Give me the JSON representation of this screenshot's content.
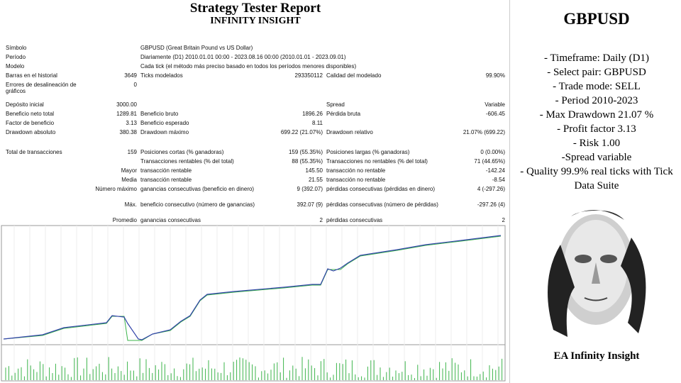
{
  "report": {
    "title": "Strategy Tester Report",
    "subtitle": "INFINITY INSIGHT",
    "rows": [
      [
        "Símbolo",
        null,
        "GBPUSD (Great Britain Pound vs US Dollar)",
        null,
        null,
        null
      ],
      [
        "Período",
        null,
        "Diariamente (D1) 2010.01.01 00:00 - 2023.08.16 00:00 (2010.01.01 - 2023.09.01)",
        null,
        null,
        null
      ],
      [
        "Modelo",
        null,
        "Cada tick (el método más preciso basado en todos los períodos menores disponibles)",
        null,
        null,
        null
      ],
      [
        "Barras en el historial",
        "3649",
        "Ticks modelados",
        "293350112",
        "Calidad del modelado",
        "99.90%"
      ],
      [
        "Errores de desalineación de gráficos",
        "0",
        null,
        null,
        null,
        null
      ],
      [
        "Depósito inicial",
        "3000.00",
        null,
        null,
        "Spread",
        "Variable"
      ],
      [
        "Beneficio neto total",
        "1289.81",
        "Beneficio bruto",
        "1896.26",
        "Pérdida bruta",
        "-606.45"
      ],
      [
        "Factor de beneficio",
        "3.13",
        "Beneficio esperado",
        "8.11",
        null,
        null
      ],
      [
        "Drawdown absoluto",
        "380.38",
        "Drawdown máximo",
        "699.22 (21.07%)",
        "Drawdown relativo",
        "21.07% (699.22)"
      ],
      [
        "Total de transacciones",
        "159",
        "Posiciones cortas (% ganadoras)",
        "159 (55.35%)",
        "Posiciones largas (% ganadoras)",
        "0 (0.00%)"
      ],
      [
        null,
        null,
        "Transacciones rentables (% del total)",
        "88 (55.35%)",
        "Transacciones no rentables (% del total)",
        "71 (44.65%)"
      ],
      [
        null,
        "Mayor",
        "transacción rentable",
        "145.50",
        "transacción no rentable",
        "-142.24"
      ],
      [
        null,
        "Media",
        "transacción rentable",
        "21.55",
        "transacción no rentable",
        "-8.54"
      ],
      [
        null,
        "Número máximo",
        "ganancias consecutivas (beneficio en dinero)",
        "9 (392.07)",
        "pérdidas consecutivas (pérdidas en dinero)",
        "4 (-297.26)"
      ],
      [
        null,
        "Máx.",
        "beneficio consecutivo (número de ganancias)",
        "392.07 (9)",
        "pérdidas consecutivas (número de pérdidas)",
        "-297.26 (4)"
      ],
      [
        null,
        "Promedio",
        "ganancias consecutivas",
        "2",
        "pérdidas consecutivas",
        "2"
      ]
    ]
  },
  "panel": {
    "title": "GBPUSD",
    "lines": [
      "- Timeframe: Daily (D1)",
      "- Select pair: GBPUSD",
      "- Trade mode: SELL",
      "- Period 2010-2023",
      "- Max Drawdown 21.07 %",
      "- Profit factor 3.13",
      "- Risk 1.00",
      "-Spread variable",
      "- Quality 99.9% real ticks with Tick Data Suite"
    ],
    "caption": "EA Infinity Insight"
  }
}
